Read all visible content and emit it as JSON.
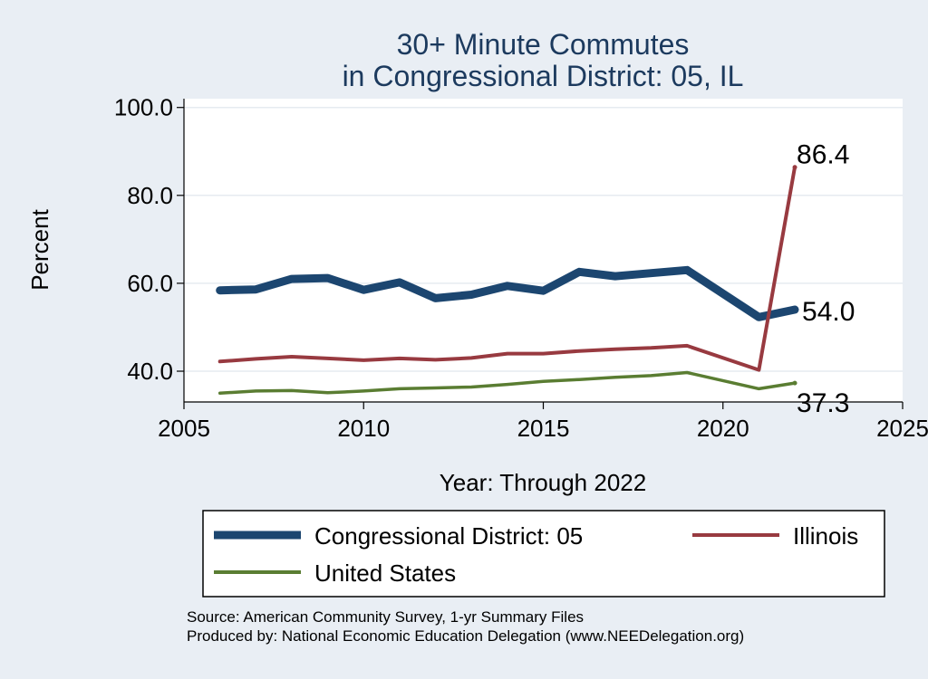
{
  "chart_data": {
    "type": "line",
    "title": [
      "30+ Minute Commutes",
      "in Congressional District:  05, IL"
    ],
    "xlabel": "Year: Through 2022",
    "ylabel": "Percent",
    "xlim": [
      2005,
      2025
    ],
    "ylim": [
      33,
      102
    ],
    "xticks": [
      2005,
      2010,
      2015,
      2020,
      2025
    ],
    "xtick_labels": [
      "2005",
      "2010",
      "2015",
      "2020",
      "2025"
    ],
    "yticks": [
      40,
      60,
      80,
      100
    ],
    "ytick_labels": [
      "40.0",
      "60.0",
      "80.0",
      "100.0"
    ],
    "grid": "horizontal",
    "x": [
      2006,
      2007,
      2008,
      2009,
      2010,
      2011,
      2012,
      2013,
      2014,
      2015,
      2016,
      2017,
      2018,
      2019,
      2021,
      2022
    ],
    "series": [
      {
        "name": "Congressional District:  05",
        "color": "#1c4670",
        "values": [
          58.4,
          58.6,
          61.0,
          61.2,
          58.5,
          60.2,
          56.6,
          57.4,
          59.4,
          58.3,
          62.6,
          61.6,
          62.3,
          63.0,
          52.3,
          54.0
        ],
        "end_label": "54.0"
      },
      {
        "name": "Illinois",
        "color": "#983a40",
        "values": [
          42.2,
          42.8,
          43.3,
          42.9,
          42.5,
          42.9,
          42.6,
          43.0,
          44.0,
          44.0,
          44.6,
          45.0,
          45.3,
          45.8,
          40.3,
          86.4
        ],
        "end_label": "86.4"
      },
      {
        "name": "United States",
        "color": "#5a7d32",
        "values": [
          35.0,
          35.5,
          35.6,
          35.1,
          35.5,
          36.0,
          36.2,
          36.4,
          37.0,
          37.7,
          38.1,
          38.6,
          39.0,
          39.7,
          36.0,
          37.3
        ],
        "end_label": "37.3"
      }
    ],
    "legend": {
      "position": "bottom",
      "entries": [
        "Congressional District:  05",
        "Illinois",
        "United States"
      ]
    },
    "notes": [
      "Source: American Community Survey, 1-yr Summary Files",
      "Produced by: National Economic Education Delegation (www.NEEDelegation.org)"
    ],
    "colors": {
      "background": "#e9eef4",
      "plot_background": "#ffffff",
      "title": "#1c3a5e"
    }
  }
}
